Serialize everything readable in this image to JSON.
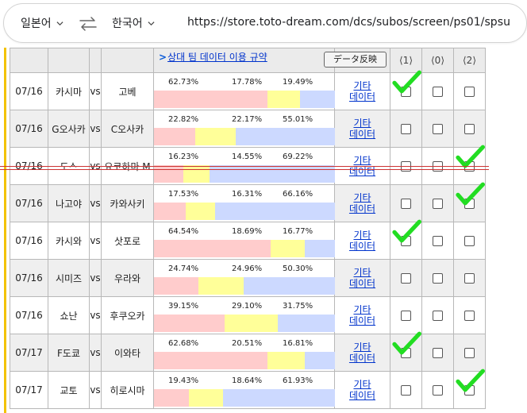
{
  "translate_bar": {
    "source_lang": "일본어",
    "target_lang": "한국어",
    "url": "https://store.toto-dream.com/dcs/subos/screen/ps01/spsu"
  },
  "header": {
    "link_text": "상대 팀 데이터 이용 규약",
    "button_label": "データ反映",
    "choices": [
      "⟨1⟩",
      "⟨0⟩",
      "⟨2⟩"
    ]
  },
  "colors": {
    "home_win": "#ffcccc",
    "draw": "#ffff99",
    "away_win": "#ccd9ff",
    "check": "#22dd22"
  },
  "matches": [
    {
      "date": "07/16",
      "home": "카시마",
      "vs": "vs",
      "away": "고베",
      "home_pct": "62.73%",
      "draw_pct": "17.78%",
      "away_pct": "19.49%",
      "h": 62.73,
      "d": 17.78,
      "a": 19.49,
      "other": [
        "기타",
        "데이터"
      ],
      "checked": "1"
    },
    {
      "date": "07/16",
      "home": "G오사카",
      "vs": "vs",
      "away": "C오사카",
      "home_pct": "22.82%",
      "draw_pct": "22.17%",
      "away_pct": "55.01%",
      "h": 22.82,
      "d": 22.17,
      "a": 55.01,
      "other": [
        "기타",
        "데이터"
      ],
      "checked": ""
    },
    {
      "date": "07/16",
      "home": "도스",
      "vs": "vs",
      "away": "요코하마 M",
      "home_pct": "16.23%",
      "draw_pct": "14.55%",
      "away_pct": "69.22%",
      "h": 16.23,
      "d": 14.55,
      "a": 69.22,
      "other": [
        "기타",
        "데이터"
      ],
      "checked": "2"
    },
    {
      "date": "07/16",
      "home": "나고야",
      "vs": "vs",
      "away": "카와사키",
      "home_pct": "17.53%",
      "draw_pct": "16.31%",
      "away_pct": "66.16%",
      "h": 17.53,
      "d": 16.31,
      "a": 66.16,
      "other": [
        "기타",
        "데이터"
      ],
      "checked": "2"
    },
    {
      "date": "07/16",
      "home": "카시와",
      "vs": "vs",
      "away": "삿포로",
      "home_pct": "64.54%",
      "draw_pct": "18.69%",
      "away_pct": "16.77%",
      "h": 64.54,
      "d": 18.69,
      "a": 16.77,
      "other": [
        "기타",
        "데이터"
      ],
      "checked": "1"
    },
    {
      "date": "07/16",
      "home": "시미즈",
      "vs": "vs",
      "away": "우라와",
      "home_pct": "24.74%",
      "draw_pct": "24.96%",
      "away_pct": "50.30%",
      "h": 24.74,
      "d": 24.96,
      "a": 50.3,
      "other": [
        "기타",
        "데이터"
      ],
      "checked": ""
    },
    {
      "date": "07/16",
      "home": "쇼난",
      "vs": "vs",
      "away": "후쿠오카",
      "home_pct": "39.15%",
      "draw_pct": "29.10%",
      "away_pct": "31.75%",
      "h": 39.15,
      "d": 29.1,
      "a": 31.75,
      "other": [
        "기타",
        "데이터"
      ],
      "checked": ""
    },
    {
      "date": "07/17",
      "home": "F도쿄",
      "vs": "vs",
      "away": "이와타",
      "home_pct": "62.68%",
      "draw_pct": "20.51%",
      "away_pct": "16.81%",
      "h": 62.68,
      "d": 20.51,
      "a": 16.81,
      "other": [
        "기타",
        "데이터"
      ],
      "checked": "1"
    },
    {
      "date": "07/17",
      "home": "교토",
      "vs": "vs",
      "away": "히로시마",
      "home_pct": "19.43%",
      "draw_pct": "18.64%",
      "away_pct": "61.93%",
      "h": 19.43,
      "d": 18.64,
      "a": 61.93,
      "other": [
        "기타",
        "데이터"
      ],
      "checked": "2"
    }
  ]
}
